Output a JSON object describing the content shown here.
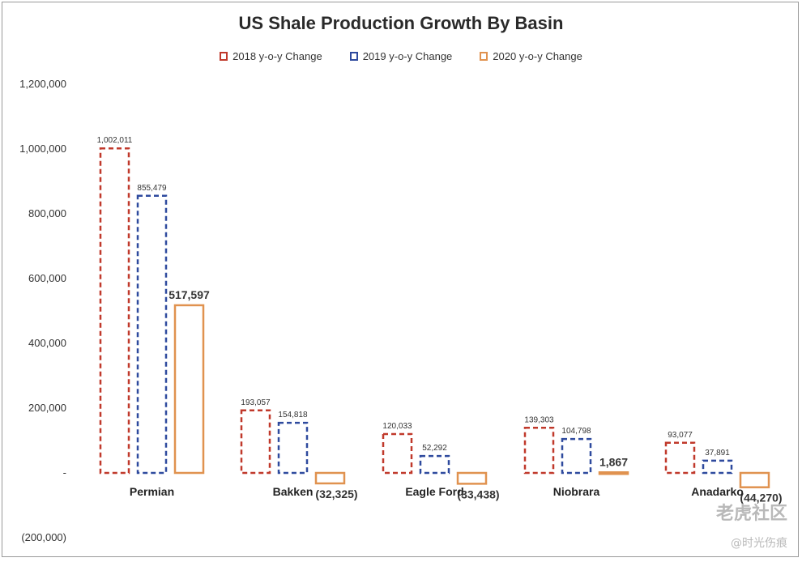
{
  "chart_data": {
    "type": "bar",
    "title": "US Shale Production Growth By Basin",
    "categories": [
      "Permian",
      "Bakken",
      "Eagle Ford",
      "Niobrara",
      "Anadarko"
    ],
    "series": [
      {
        "name": "2018 y-o-y Change",
        "values": [
          1002011,
          193057,
          120033,
          139303,
          93077
        ],
        "labels": [
          "1,002,011",
          "193,057",
          "120,033",
          "139,303",
          "93,077"
        ],
        "color": "#c0392b",
        "style": "dashed"
      },
      {
        "name": "2019 y-o-y Change",
        "values": [
          855479,
          154818,
          52292,
          104798,
          37891
        ],
        "labels": [
          "855,479",
          "154,818",
          "52,292",
          "104,798",
          "37,891"
        ],
        "color": "#2e4a9e",
        "style": "dashed"
      },
      {
        "name": "2020 y-o-y Change",
        "values": [
          517597,
          -32325,
          -33438,
          1867,
          -44270
        ],
        "labels": [
          "517,597",
          "(32,325)",
          "(33,438)",
          "1,867",
          "(44,270)"
        ],
        "color": "#e0924f",
        "style": "solid"
      }
    ],
    "ylim": [
      -200000,
      1200000
    ],
    "yticks": [
      1200000,
      1000000,
      800000,
      600000,
      400000,
      200000,
      0,
      -200000
    ],
    "ytick_labels": [
      "1,200,000",
      "1,000,000",
      "800,000",
      "600,000",
      "400,000",
      "200,000",
      "-",
      "(200,000)"
    ],
    "xlabel": "",
    "ylabel": "",
    "grid": false,
    "legend_position": "top"
  },
  "watermark": {
    "primary": "老虎社区",
    "secondary": "@时光伤痕"
  }
}
